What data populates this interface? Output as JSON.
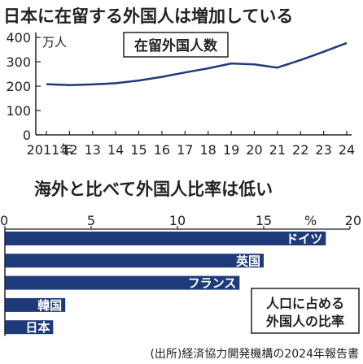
{
  "chart_data": [
    {
      "type": "line",
      "title": "日本に在留する外国人は増加している",
      "unit": "万人",
      "legend_box_label": "在留外国人数",
      "x_tick_labels": [
        "2011年",
        "12",
        "13",
        "14",
        "15",
        "16",
        "17",
        "18",
        "19",
        "20",
        "21",
        "22",
        "23",
        "24"
      ],
      "x": [
        2011,
        2012,
        2013,
        2014,
        2015,
        2016,
        2017,
        2018,
        2019,
        2020,
        2021,
        2022,
        2023,
        2024
      ],
      "values": [
        208,
        204,
        207,
        212,
        223,
        238,
        256,
        273,
        293,
        289,
        276,
        307,
        341,
        377
      ],
      "y_ticks": [
        0,
        100,
        200,
        300,
        400
      ],
      "ylim": [
        0,
        420
      ],
      "grid": false,
      "color": "#1f3a7a"
    },
    {
      "type": "bar",
      "orientation": "horizontal",
      "title": "海外と比べて外国人比率は低い",
      "unit": "%",
      "x_ticks": [
        0,
        5,
        10,
        15,
        20
      ],
      "xlim": [
        0,
        20
      ],
      "categories": [
        "ドイツ",
        "英国",
        "フランス",
        "韓国",
        "日本"
      ],
      "values": [
        18.6,
        15.0,
        13.6,
        3.5,
        2.8
      ],
      "legend_box_label": [
        "人口に占める",
        "外国人の比率"
      ],
      "source": "(出所)経済協力開発機構の2024年報告書",
      "color": "#1f3a7a"
    }
  ]
}
